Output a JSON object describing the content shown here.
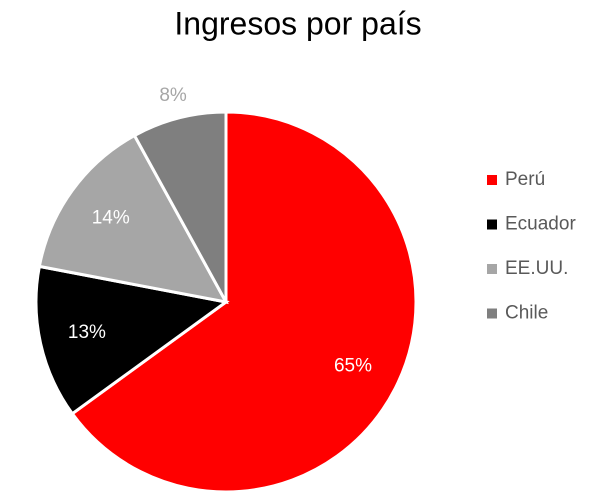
{
  "chart_data": {
    "type": "pie",
    "title": "Ingresos por país",
    "categories": [
      "Perú",
      "Ecuador",
      "EE.UU.",
      "Chile"
    ],
    "values": [
      65,
      13,
      14,
      8
    ],
    "value_labels": [
      "65%",
      "13%",
      "14%",
      "8%"
    ],
    "colors": [
      "#ff0000",
      "#000000",
      "#a6a6a6",
      "#7f7f7f"
    ],
    "legend": "right"
  }
}
